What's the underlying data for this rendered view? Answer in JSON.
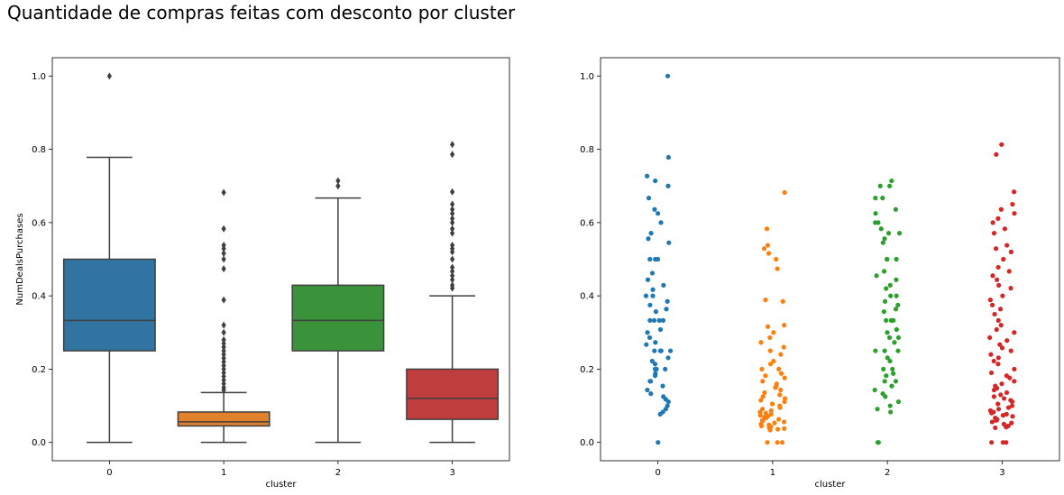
{
  "title": "Quantidade de compras feitas com desconto por cluster",
  "colors": {
    "box": [
      "#3274a1",
      "#e1812c",
      "#3a923a",
      "#c03d3e"
    ],
    "strip": [
      "#1f77b4",
      "#ff7f0e",
      "#2ca02c",
      "#d62728"
    ],
    "line": "#3f3f3f"
  },
  "chart_data": [
    {
      "type": "box",
      "xlabel": "cluster",
      "ylabel": "NumDealsPurchases",
      "categories": [
        "0",
        "1",
        "2",
        "3"
      ],
      "ylim": [
        -0.05,
        1.05
      ],
      "yticks": [
        "0.0",
        "0.2",
        "0.4",
        "0.6",
        "0.8",
        "1.0"
      ],
      "series": [
        {
          "category": "0",
          "q1": 0.25,
          "median": 0.333,
          "q3": 0.5,
          "whisker_low": 0.0,
          "whisker_high": 0.778,
          "outliers": [
            1.0
          ]
        },
        {
          "category": "1",
          "q1": 0.045,
          "median": 0.056,
          "q3": 0.083,
          "whisker_low": 0.0,
          "whisker_high": 0.136,
          "outliers": [
            0.682,
            0.583,
            0.538,
            0.529,
            0.516,
            0.5,
            0.474,
            0.389,
            0.32,
            0.3,
            0.28,
            0.27,
            0.26,
            0.25,
            0.24,
            0.23,
            0.22,
            0.21,
            0.2,
            0.19,
            0.18,
            0.17,
            0.16,
            0.15,
            0.143
          ]
        },
        {
          "category": "2",
          "q1": 0.25,
          "median": 0.333,
          "q3": 0.429,
          "whisker_low": 0.0,
          "whisker_high": 0.667,
          "outliers": [
            0.714,
            0.7
          ]
        },
        {
          "category": "3",
          "q1": 0.063,
          "median": 0.12,
          "q3": 0.2,
          "whisker_low": 0.0,
          "whisker_high": 0.4,
          "outliers": [
            0.813,
            0.786,
            0.684,
            0.65,
            0.636,
            0.625,
            0.611,
            0.6,
            0.583,
            0.571,
            0.538,
            0.529,
            0.52,
            0.5,
            0.478,
            0.467,
            0.455,
            0.444,
            0.429,
            0.421
          ]
        }
      ]
    },
    {
      "type": "scatter",
      "subtype": "strip",
      "xlabel": "cluster",
      "categories": [
        "0",
        "1",
        "2",
        "3"
      ],
      "ylim": [
        -0.05,
        1.05
      ],
      "yticks": [
        "0.0",
        "0.2",
        "0.4",
        "0.6",
        "0.8",
        "1.0"
      ],
      "series": [
        {
          "category": "0",
          "points": [
            1.0,
            0.778,
            0.727,
            0.714,
            0.7,
            0.667,
            0.636,
            0.625,
            0.6,
            0.571,
            0.556,
            0.545,
            0.5,
            0.5,
            0.5,
            0.462,
            0.444,
            0.429,
            0.417,
            0.4,
            0.4,
            0.385,
            0.375,
            0.364,
            0.357,
            0.333,
            0.333,
            0.333,
            0.333,
            0.308,
            0.3,
            0.286,
            0.273,
            0.267,
            0.25,
            0.25,
            0.25,
            0.25,
            0.231,
            0.222,
            0.214,
            0.2,
            0.2,
            0.2,
            0.188,
            0.182,
            0.167,
            0.167,
            0.154,
            0.143,
            0.133,
            0.125,
            0.118,
            0.111,
            0.1,
            0.091,
            0.083,
            0.077,
            0.0
          ]
        },
        {
          "category": "1",
          "points": [
            0.682,
            0.583,
            0.538,
            0.529,
            0.516,
            0.5,
            0.474,
            0.389,
            0.385,
            0.32,
            0.316,
            0.3,
            0.286,
            0.273,
            0.26,
            0.25,
            0.24,
            0.222,
            0.214,
            0.2,
            0.2,
            0.188,
            0.182,
            0.176,
            0.167,
            0.16,
            0.154,
            0.15,
            0.143,
            0.136,
            0.13,
            0.125,
            0.12,
            0.115,
            0.111,
            0.105,
            0.1,
            0.095,
            0.091,
            0.087,
            0.083,
            0.08,
            0.077,
            0.074,
            0.071,
            0.069,
            0.067,
            0.063,
            0.06,
            0.059,
            0.056,
            0.053,
            0.05,
            0.048,
            0.045,
            0.043,
            0.04,
            0.038,
            0.036,
            0.034,
            0.0,
            0.0,
            0.0
          ]
        },
        {
          "category": "2",
          "points": [
            0.714,
            0.7,
            0.7,
            0.667,
            0.667,
            0.636,
            0.625,
            0.6,
            0.6,
            0.583,
            0.571,
            0.571,
            0.556,
            0.545,
            0.5,
            0.5,
            0.5,
            0.467,
            0.455,
            0.444,
            0.429,
            0.42,
            0.4,
            0.4,
            0.385,
            0.375,
            0.364,
            0.357,
            0.333,
            0.333,
            0.333,
            0.308,
            0.3,
            0.286,
            0.286,
            0.273,
            0.25,
            0.25,
            0.25,
            0.231,
            0.222,
            0.2,
            0.2,
            0.188,
            0.182,
            0.167,
            0.167,
            0.154,
            0.143,
            0.133,
            0.125,
            0.111,
            0.1,
            0.091,
            0.083,
            0.0,
            0.0
          ]
        },
        {
          "category": "3",
          "points": [
            0.813,
            0.786,
            0.684,
            0.65,
            0.636,
            0.625,
            0.611,
            0.6,
            0.583,
            0.571,
            0.538,
            0.529,
            0.52,
            0.5,
            0.478,
            0.467,
            0.455,
            0.444,
            0.429,
            0.421,
            0.4,
            0.389,
            0.375,
            0.364,
            0.35,
            0.333,
            0.32,
            0.308,
            0.3,
            0.286,
            0.278,
            0.267,
            0.258,
            0.25,
            0.24,
            0.231,
            0.222,
            0.214,
            0.2,
            0.19,
            0.182,
            0.176,
            0.167,
            0.16,
            0.154,
            0.148,
            0.143,
            0.136,
            0.13,
            0.125,
            0.12,
            0.115,
            0.111,
            0.105,
            0.1,
            0.095,
            0.091,
            0.087,
            0.083,
            0.08,
            0.077,
            0.074,
            0.071,
            0.067,
            0.063,
            0.06,
            0.056,
            0.053,
            0.05,
            0.045,
            0.042,
            0.04,
            0.0,
            0.0,
            0.0
          ]
        }
      ]
    }
  ]
}
